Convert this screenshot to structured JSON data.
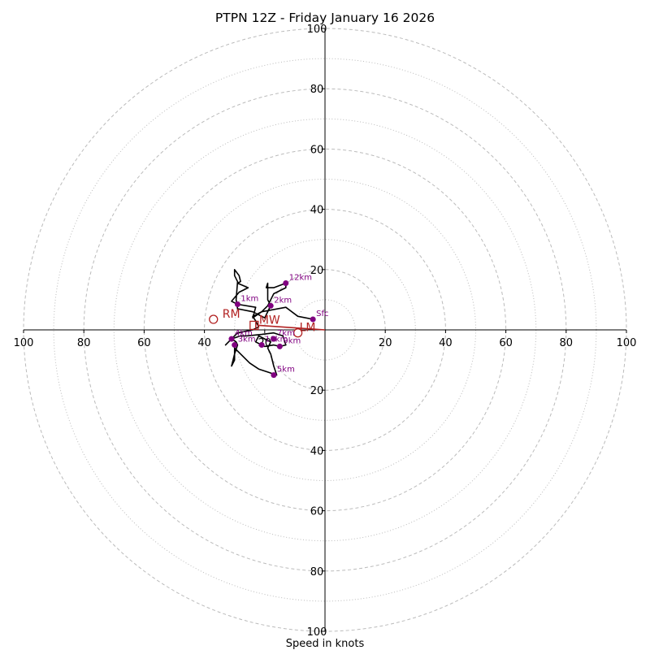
{
  "chart_data": {
    "type": "hodograph",
    "title": "PTPN 12Z - Friday January 16 2026",
    "xlabel": "Speed in knots",
    "range": [
      -100,
      100
    ],
    "ring_major_step": 20,
    "ring_minor_step": 10,
    "tick_labels": [
      "100",
      "80",
      "60",
      "40",
      "20",
      "20",
      "40",
      "60",
      "80",
      "100"
    ],
    "x_tick_values": [
      -100,
      -80,
      -60,
      -40,
      -20,
      20,
      40,
      60,
      80,
      100
    ],
    "y_tick_values": [
      100,
      80,
      60,
      40,
      20,
      -20,
      -40,
      -60,
      -80,
      -100
    ],
    "wind_trace": [
      [
        -4,
        3.5
      ],
      [
        -9,
        4.5
      ],
      [
        -13,
        7.5
      ],
      [
        -21,
        6
      ],
      [
        -24,
        4
      ],
      [
        -23,
        7.5
      ],
      [
        -29,
        8.5
      ],
      [
        -31,
        9.5
      ],
      [
        -28.5,
        12.5
      ],
      [
        -25.5,
        14
      ],
      [
        -29,
        15.5
      ],
      [
        -28,
        16
      ],
      [
        -28.5,
        18
      ],
      [
        -30,
        20
      ],
      [
        -30,
        18
      ],
      [
        -29,
        16
      ],
      [
        -29.5,
        10
      ],
      [
        -29,
        7
      ],
      [
        -24,
        6
      ],
      [
        -20,
        4
      ],
      [
        -18,
        8
      ],
      [
        -19,
        10
      ],
      [
        -19,
        13
      ],
      [
        -19,
        15.5
      ],
      [
        -19.5,
        14
      ],
      [
        -17,
        14
      ],
      [
        -13,
        15.5
      ],
      [
        -13,
        14
      ],
      [
        -17,
        12
      ],
      [
        -19,
        8
      ],
      [
        -21,
        6
      ],
      [
        -24,
        4.5
      ],
      [
        -23,
        3
      ],
      [
        -22,
        1
      ],
      [
        -24,
        0
      ],
      [
        -29,
        -1
      ],
      [
        -31,
        -3
      ],
      [
        -28,
        -2
      ],
      [
        -26,
        -2
      ],
      [
        -21,
        -1.5
      ],
      [
        -17,
        -1
      ],
      [
        -14,
        -2
      ],
      [
        -13,
        -5
      ],
      [
        -15,
        -5.5
      ],
      [
        -17,
        -5
      ],
      [
        -20,
        -5.5
      ],
      [
        -21,
        -5
      ],
      [
        -23,
        -4
      ],
      [
        -22,
        -2
      ],
      [
        -20,
        -3
      ],
      [
        -18,
        -4
      ],
      [
        -19,
        -6
      ],
      [
        -18,
        -8
      ],
      [
        -17,
        -12
      ],
      [
        -16,
        -15
      ],
      [
        -19,
        -14
      ],
      [
        -22,
        -13
      ],
      [
        -25,
        -11
      ],
      [
        -28,
        -8
      ],
      [
        -29,
        -7
      ],
      [
        -30,
        -6
      ],
      [
        -30,
        -10
      ],
      [
        -31,
        -12
      ],
      [
        -30,
        -8
      ],
      [
        -29,
        -5
      ],
      [
        -29.5,
        -4
      ],
      [
        -31,
        -3
      ],
      [
        -33,
        -5
      ],
      [
        -32,
        -4
      ],
      [
        -31,
        -3
      ],
      [
        -30,
        -2
      ]
    ],
    "height_markers": [
      {
        "label": "Sfc",
        "u": -4,
        "v": 3.5
      },
      {
        "label": "1km",
        "u": -29,
        "v": 8.5
      },
      {
        "label": "2km",
        "u": -18,
        "v": 8
      },
      {
        "label": "12km",
        "u": -13,
        "v": 15.5
      },
      {
        "label": "4km",
        "u": -31,
        "v": -3
      },
      {
        "label": "3km",
        "u": -30,
        "v": -5
      },
      {
        "label": "7km",
        "u": -17,
        "v": -3
      },
      {
        "label": "9km",
        "u": -15,
        "v": -5.5
      },
      {
        "label": "10km",
        "u": -21,
        "v": -5
      },
      {
        "label": "5km",
        "u": -17,
        "v": -15
      }
    ],
    "storm_motion": {
      "RM": {
        "label": "RM",
        "u": -37,
        "v": 3.5
      },
      "LM": {
        "label": "LM",
        "u": -9,
        "v": -1
      },
      "MW": {
        "label": "MW",
        "u": -23.5,
        "v": 1.5
      }
    },
    "shear_vector": {
      "from": [
        -22,
        1.5
      ],
      "to": [
        0,
        0
      ]
    },
    "colors": {
      "trace": "#000000",
      "marker": "#800080",
      "storm": "#b22222",
      "ring": "#bbbbbb",
      "axis": "#000000"
    }
  }
}
